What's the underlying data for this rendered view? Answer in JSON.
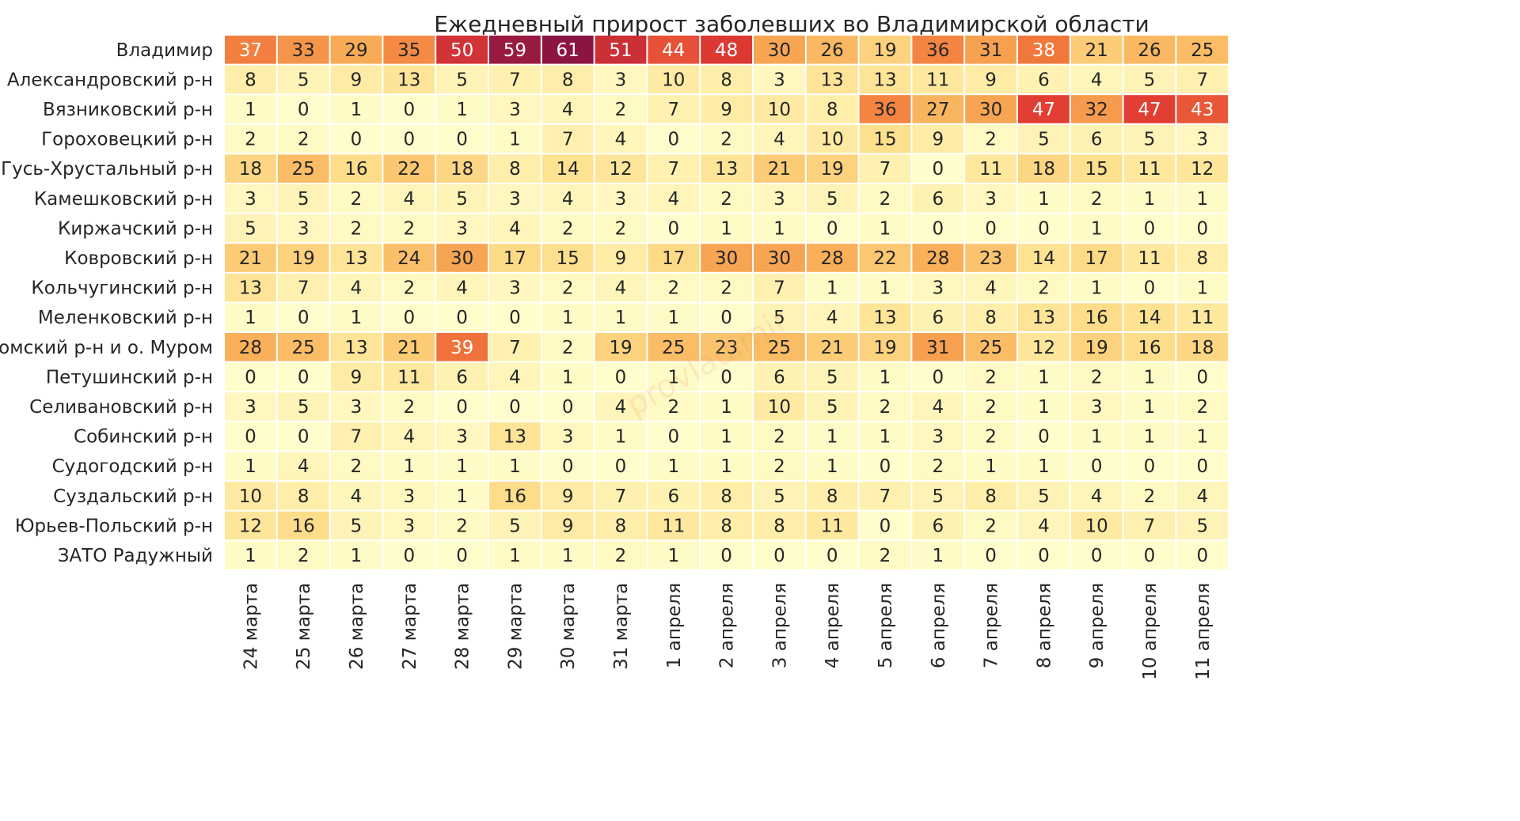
{
  "chart_data": {
    "type": "heatmap",
    "title": "Ежедневный прирост заболевших во Владимирской области",
    "xlabel": "",
    "ylabel": "",
    "watermark": "provladimir",
    "colormap": "YlOrRd",
    "value_range": [
      0,
      61
    ],
    "colors": {
      "low": "#fffdcb",
      "mid_low": "#fde08d",
      "mid": "#f9b35b",
      "mid_high": "#f3813f",
      "high": "#e03a33",
      "top": "#8c1442",
      "text_dark": "#262626",
      "text_light": "#ffffff",
      "grid_line": "#ffffff"
    },
    "columns": [
      "24 марта",
      "25 марта",
      "26 марта",
      "27 марта",
      "28 марта",
      "29 марта",
      "30 марта",
      "31 марта",
      "1 апреля",
      "2 апреля",
      "3 апреля",
      "4 апреля",
      "5 апреля",
      "6 апреля",
      "7 апреля",
      "8 апреля",
      "9 апреля",
      "10 апреля",
      "11 апреля"
    ],
    "rows": [
      {
        "name": "Владимир",
        "values": [
          37,
          33,
          29,
          35,
          50,
          59,
          61,
          51,
          44,
          48,
          30,
          26,
          19,
          36,
          31,
          38,
          21,
          26,
          25
        ]
      },
      {
        "name": "Александровский р-н",
        "values": [
          8,
          5,
          9,
          13,
          5,
          7,
          8,
          3,
          10,
          8,
          3,
          13,
          13,
          11,
          9,
          6,
          4,
          5,
          7
        ]
      },
      {
        "name": "Вязниковский р-н",
        "values": [
          1,
          0,
          1,
          0,
          1,
          3,
          4,
          2,
          7,
          9,
          10,
          8,
          36,
          27,
          30,
          47,
          32,
          47,
          43
        ]
      },
      {
        "name": "Гороховецкий р-н",
        "values": [
          2,
          2,
          0,
          0,
          0,
          1,
          7,
          4,
          0,
          2,
          4,
          10,
          15,
          9,
          2,
          5,
          6,
          5,
          3
        ]
      },
      {
        "name": "Гусь-Хрустальный р-н",
        "values": [
          18,
          25,
          16,
          22,
          18,
          8,
          14,
          12,
          7,
          13,
          21,
          19,
          7,
          0,
          11,
          18,
          15,
          11,
          12
        ]
      },
      {
        "name": "Камешковский р-н",
        "values": [
          3,
          5,
          2,
          4,
          5,
          3,
          4,
          3,
          4,
          2,
          3,
          5,
          2,
          6,
          3,
          1,
          2,
          1,
          1
        ]
      },
      {
        "name": "Киржачский р-н",
        "values": [
          5,
          3,
          2,
          2,
          3,
          4,
          2,
          2,
          0,
          1,
          1,
          0,
          1,
          0,
          0,
          0,
          1,
          0,
          0
        ]
      },
      {
        "name": "Ковровский р-н",
        "values": [
          21,
          19,
          13,
          24,
          30,
          17,
          15,
          9,
          17,
          30,
          30,
          28,
          22,
          28,
          23,
          14,
          17,
          11,
          8
        ]
      },
      {
        "name": "Кольчугинский р-н",
        "values": [
          13,
          7,
          4,
          2,
          4,
          3,
          2,
          4,
          2,
          2,
          7,
          1,
          1,
          3,
          4,
          2,
          1,
          0,
          1
        ]
      },
      {
        "name": "Меленковский р-н",
        "values": [
          1,
          0,
          1,
          0,
          0,
          0,
          1,
          1,
          1,
          0,
          5,
          4,
          13,
          6,
          8,
          13,
          16,
          14,
          11
        ]
      },
      {
        "name": "Муромский р-н и о. Муром",
        "values": [
          28,
          25,
          13,
          21,
          39,
          7,
          2,
          19,
          25,
          23,
          25,
          21,
          19,
          31,
          25,
          12,
          19,
          16,
          18
        ]
      },
      {
        "name": "Петушинский р-н",
        "values": [
          0,
          0,
          9,
          11,
          6,
          4,
          1,
          0,
          1,
          0,
          6,
          5,
          1,
          0,
          2,
          1,
          2,
          1,
          0
        ]
      },
      {
        "name": "Селивановский р-н",
        "values": [
          3,
          5,
          3,
          2,
          0,
          0,
          0,
          4,
          2,
          1,
          10,
          5,
          2,
          4,
          2,
          1,
          3,
          1,
          2
        ]
      },
      {
        "name": "Собинский р-н",
        "values": [
          0,
          0,
          7,
          4,
          3,
          13,
          3,
          1,
          0,
          1,
          2,
          1,
          1,
          3,
          2,
          0,
          1,
          1,
          1
        ]
      },
      {
        "name": "Судогодский р-н",
        "values": [
          1,
          4,
          2,
          1,
          1,
          1,
          0,
          0,
          1,
          1,
          2,
          1,
          0,
          2,
          1,
          1,
          0,
          0,
          0
        ]
      },
      {
        "name": "Суздальский р-н",
        "values": [
          10,
          8,
          4,
          3,
          1,
          16,
          9,
          7,
          6,
          8,
          5,
          8,
          7,
          5,
          8,
          5,
          4,
          2,
          4
        ]
      },
      {
        "name": "Юрьев-Польский р-н",
        "values": [
          12,
          16,
          5,
          3,
          2,
          5,
          9,
          8,
          11,
          8,
          8,
          11,
          0,
          6,
          2,
          4,
          10,
          7,
          5
        ]
      },
      {
        "name": "ЗАТО Радужный",
        "values": [
          1,
          2,
          1,
          0,
          0,
          1,
          1,
          2,
          1,
          0,
          0,
          0,
          2,
          1,
          0,
          0,
          0,
          0,
          0
        ]
      }
    ]
  }
}
